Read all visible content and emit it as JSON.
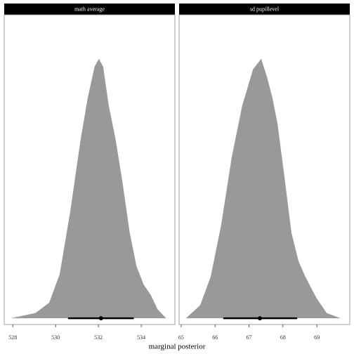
{
  "x_label": "marginal posterior",
  "chart_data": [
    {
      "type": "density",
      "title": "math average",
      "color": "#999999",
      "x": [
        527.9,
        529.05,
        529.7,
        530.19,
        530.68,
        531.17,
        531.5,
        531.82,
        532.02,
        532.22,
        532.48,
        532.8,
        533.13,
        533.46,
        533.78,
        534.11,
        534.44,
        534.76,
        535.16
      ],
      "values": [
        0,
        0.02,
        0.06,
        0.17,
        0.41,
        0.69,
        0.85,
        0.97,
        1.0,
        0.97,
        0.82,
        0.69,
        0.52,
        0.33,
        0.2,
        0.13,
        0.09,
        0.035,
        0
      ],
      "interval_low": 530.58,
      "interval_high": 533.65,
      "point": 532.12,
      "xlim": [
        527.6,
        535.57
      ],
      "xticks": [
        528,
        530,
        532,
        534
      ],
      "ylim": [
        -0.024,
        1.17
      ]
    },
    {
      "type": "density",
      "title": "sd pupillevel",
      "color": "#999999",
      "x": [
        65.14,
        65.56,
        65.87,
        66.18,
        66.49,
        66.8,
        67.12,
        67.36,
        67.53,
        67.69,
        67.84,
        68.04,
        68.25,
        68.46,
        68.66,
        68.98,
        69.29,
        69.7
      ],
      "values": [
        0,
        0.05,
        0.16,
        0.36,
        0.62,
        0.82,
        0.96,
        1.0,
        0.93,
        0.85,
        0.75,
        0.55,
        0.33,
        0.22,
        0.16,
        0.08,
        0.02,
        0
      ],
      "interval_low": 66.24,
      "interval_high": 68.42,
      "point": 67.32,
      "xlim": [
        64.94,
        69.97
      ],
      "xticks": [
        65,
        66,
        67,
        68,
        69
      ],
      "ylim": [
        -0.024,
        1.17
      ]
    }
  ]
}
